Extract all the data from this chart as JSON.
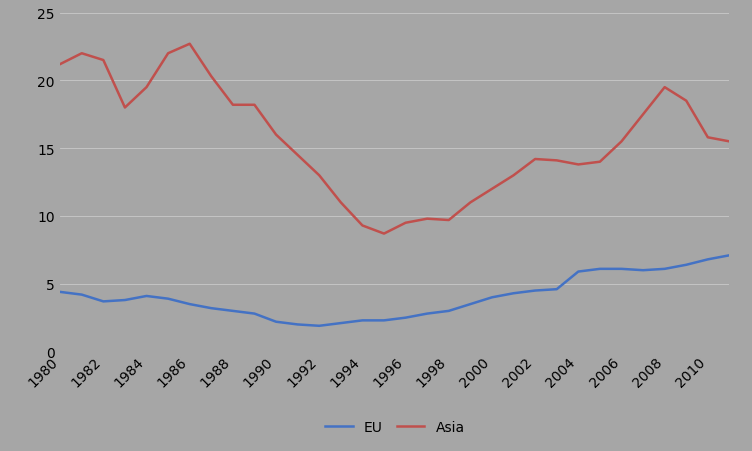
{
  "years": [
    1980,
    1981,
    1982,
    1983,
    1984,
    1985,
    1986,
    1987,
    1988,
    1989,
    1990,
    1991,
    1992,
    1993,
    1994,
    1995,
    1996,
    1997,
    1998,
    1999,
    2000,
    2001,
    2002,
    2003,
    2004,
    2005,
    2006,
    2007,
    2008,
    2009,
    2010,
    2011
  ],
  "eu": [
    4.4,
    4.2,
    3.7,
    3.8,
    4.1,
    3.9,
    3.5,
    3.2,
    3.0,
    2.8,
    2.2,
    2.0,
    1.9,
    2.1,
    2.3,
    2.3,
    2.5,
    2.8,
    3.0,
    3.5,
    4.0,
    4.3,
    4.5,
    4.6,
    5.9,
    6.1,
    6.1,
    6.0,
    6.1,
    6.4,
    6.8,
    7.1
  ],
  "asia": [
    21.2,
    22.0,
    21.5,
    18.0,
    19.5,
    22.0,
    22.7,
    20.3,
    18.2,
    18.2,
    16.0,
    14.5,
    13.0,
    11.0,
    9.3,
    8.7,
    9.5,
    9.8,
    9.7,
    11.0,
    12.0,
    13.0,
    14.2,
    14.1,
    13.8,
    14.0,
    15.5,
    17.5,
    19.5,
    18.5,
    15.8,
    15.5
  ],
  "eu_color": "#4472C4",
  "asia_color": "#C0504D",
  "background_color": "#A6A6A6",
  "yticks": [
    0,
    5,
    10,
    15,
    20,
    25
  ],
  "ylim": [
    0,
    25
  ],
  "legend_labels": [
    "EU",
    "Asia"
  ],
  "tick_years": [
    1980,
    1982,
    1984,
    1986,
    1988,
    1990,
    1992,
    1994,
    1996,
    1998,
    2000,
    2002,
    2004,
    2006,
    2008,
    2010
  ]
}
